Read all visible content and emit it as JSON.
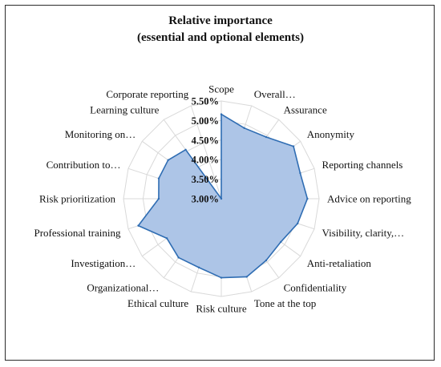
{
  "chart_data": {
    "type": "radar",
    "title": "Relative importance",
    "subtitle": "(essential and optional elements)",
    "categories": [
      "Scope",
      "Overall…",
      "Assurance",
      "Anonymity",
      "Reporting channels",
      "Advice on reporting",
      "Visibility, clarity,…",
      "Anti-retaliation",
      "Confidentiality",
      "Tone at the top",
      "Risk culture",
      "Ethical culture",
      "Organizational…",
      "Investigation…",
      "Professional training",
      "Risk prioritization",
      "Contribution to…",
      "Monitoring on…",
      "Learning culture",
      "Corporate reporting"
    ],
    "values": [
      5.16,
      4.9,
      4.95,
      5.28,
      5.12,
      5.2,
      5.05,
      4.88,
      4.95,
      5.1,
      5.02,
      4.85,
      4.86,
      4.72,
      5.23,
      4.6,
      4.68,
      4.68,
      4.55,
      3.0
    ],
    "rlim": [
      3.0,
      5.5
    ],
    "rticks": [
      "3.00%",
      "3.50%",
      "4.00%",
      "4.50%",
      "5.00%",
      "5.50%"
    ],
    "grid": true,
    "legend": "none",
    "colors": {
      "fill": "#adc5e7",
      "line": "#2f6db3",
      "grid": "#d9d9d9"
    }
  }
}
